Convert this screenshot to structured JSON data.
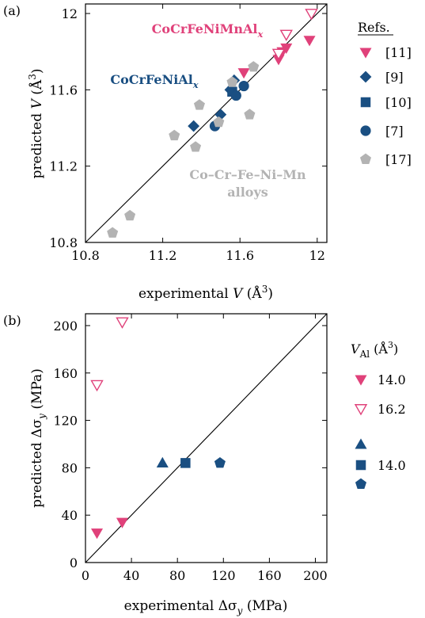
{
  "colors": {
    "pink": "#e0417a",
    "blue": "#1a4f82",
    "gray": "#b3b3b3",
    "axis": "#000000"
  },
  "chart_data": [
    {
      "type": "scatter",
      "panel_label": "(a)",
      "xlabel": "experimental V  (Å³)",
      "ylabel": "predicted V  (Å³)",
      "xlim": [
        10.8,
        12.05
      ],
      "ylim": [
        10.8,
        12.05
      ],
      "xticks": [
        10.8,
        11.2,
        11.6,
        12.0
      ],
      "xtick_labels": [
        "10.8",
        "11.2",
        "11.6",
        "12"
      ],
      "yticks": [
        10.8,
        11.2,
        11.6,
        12.0
      ],
      "ytick_labels": [
        "10.8",
        "11.2",
        "11.6",
        "12"
      ],
      "diagonal": true,
      "legend_title": "Refs.",
      "legend_placement": "right",
      "annotations": [
        {
          "text": "CoCrFeNiMnAl",
          "sub": "x",
          "color": "pink"
        },
        {
          "text": "CoCrFeNiAl",
          "sub": "x",
          "color": "blue"
        },
        {
          "text": "Co–Cr–Fe–Ni–Mn",
          "color": "gray"
        },
        {
          "text": "alloys",
          "color": "gray"
        }
      ],
      "series": [
        {
          "name": "[11]",
          "marker": "triangle-down",
          "filled": true,
          "color": "pink",
          "points": [
            [
              11.62,
              11.69
            ],
            [
              11.8,
              11.76
            ],
            [
              11.82,
              11.8
            ],
            [
              11.84,
              11.82
            ],
            [
              11.96,
              11.86
            ]
          ]
        },
        {
          "name": "",
          "marker": "triangle-down",
          "filled": false,
          "color": "pink",
          "points": [
            [
              11.8,
              11.79
            ],
            [
              11.84,
              11.89
            ],
            [
              11.97,
              12.0
            ]
          ]
        },
        {
          "name": "[9]",
          "marker": "diamond",
          "filled": true,
          "color": "blue",
          "points": [
            [
              11.36,
              11.41
            ],
            [
              11.5,
              11.47
            ],
            [
              11.55,
              11.6
            ],
            [
              11.57,
              11.65
            ]
          ]
        },
        {
          "name": "[10]",
          "marker": "square",
          "filled": true,
          "color": "blue",
          "points": [
            [
              11.56,
              11.59
            ]
          ]
        },
        {
          "name": "[7]",
          "marker": "circle",
          "filled": true,
          "color": "blue",
          "points": [
            [
              11.47,
              11.41
            ],
            [
              11.58,
              11.57
            ],
            [
              11.62,
              11.62
            ]
          ]
        },
        {
          "name": "[17]",
          "marker": "pentagon",
          "filled": true,
          "color": "gray",
          "points": [
            [
              10.94,
              10.85
            ],
            [
              11.03,
              10.94
            ],
            [
              11.26,
              11.36
            ],
            [
              11.37,
              11.3
            ],
            [
              11.39,
              11.52
            ],
            [
              11.49,
              11.43
            ],
            [
              11.56,
              11.64
            ],
            [
              11.65,
              11.47
            ],
            [
              11.67,
              11.72
            ]
          ]
        }
      ]
    },
    {
      "type": "scatter",
      "panel_label": "(b)",
      "xlabel": "experimental Δσᵧ  (MPa)",
      "ylabel": "predicted Δσᵧ  (MPa)",
      "xlim": [
        0,
        210
      ],
      "ylim": [
        0,
        210
      ],
      "xticks": [
        0,
        40,
        80,
        120,
        160,
        200
      ],
      "xtick_labels": [
        "0",
        "40",
        "80",
        "120",
        "160",
        "200"
      ],
      "yticks": [
        0,
        40,
        80,
        120,
        160,
        200
      ],
      "ytick_labels": [
        "0",
        "40",
        "80",
        "120",
        "160",
        "200"
      ],
      "diagonal": true,
      "legend_title": "V_Al (Å³)",
      "legend_placement": "right",
      "series": [
        {
          "name": "14.0",
          "marker": "triangle-down",
          "filled": true,
          "color": "pink",
          "points": [
            [
              10,
              25
            ],
            [
              32,
              34
            ]
          ]
        },
        {
          "name": "16.2",
          "marker": "triangle-down",
          "filled": false,
          "color": "pink",
          "points": [
            [
              10,
              150
            ],
            [
              32,
              203
            ]
          ]
        },
        {
          "name": "",
          "marker": "triangle-up",
          "filled": true,
          "color": "blue",
          "points": [
            [
              67,
              84
            ]
          ]
        },
        {
          "name": "14.0",
          "marker": "square",
          "filled": true,
          "color": "blue",
          "points": [
            [
              87,
              84
            ]
          ]
        },
        {
          "name": "",
          "marker": "pentagon",
          "filled": true,
          "color": "blue",
          "points": [
            [
              117,
              84
            ]
          ]
        }
      ]
    }
  ]
}
